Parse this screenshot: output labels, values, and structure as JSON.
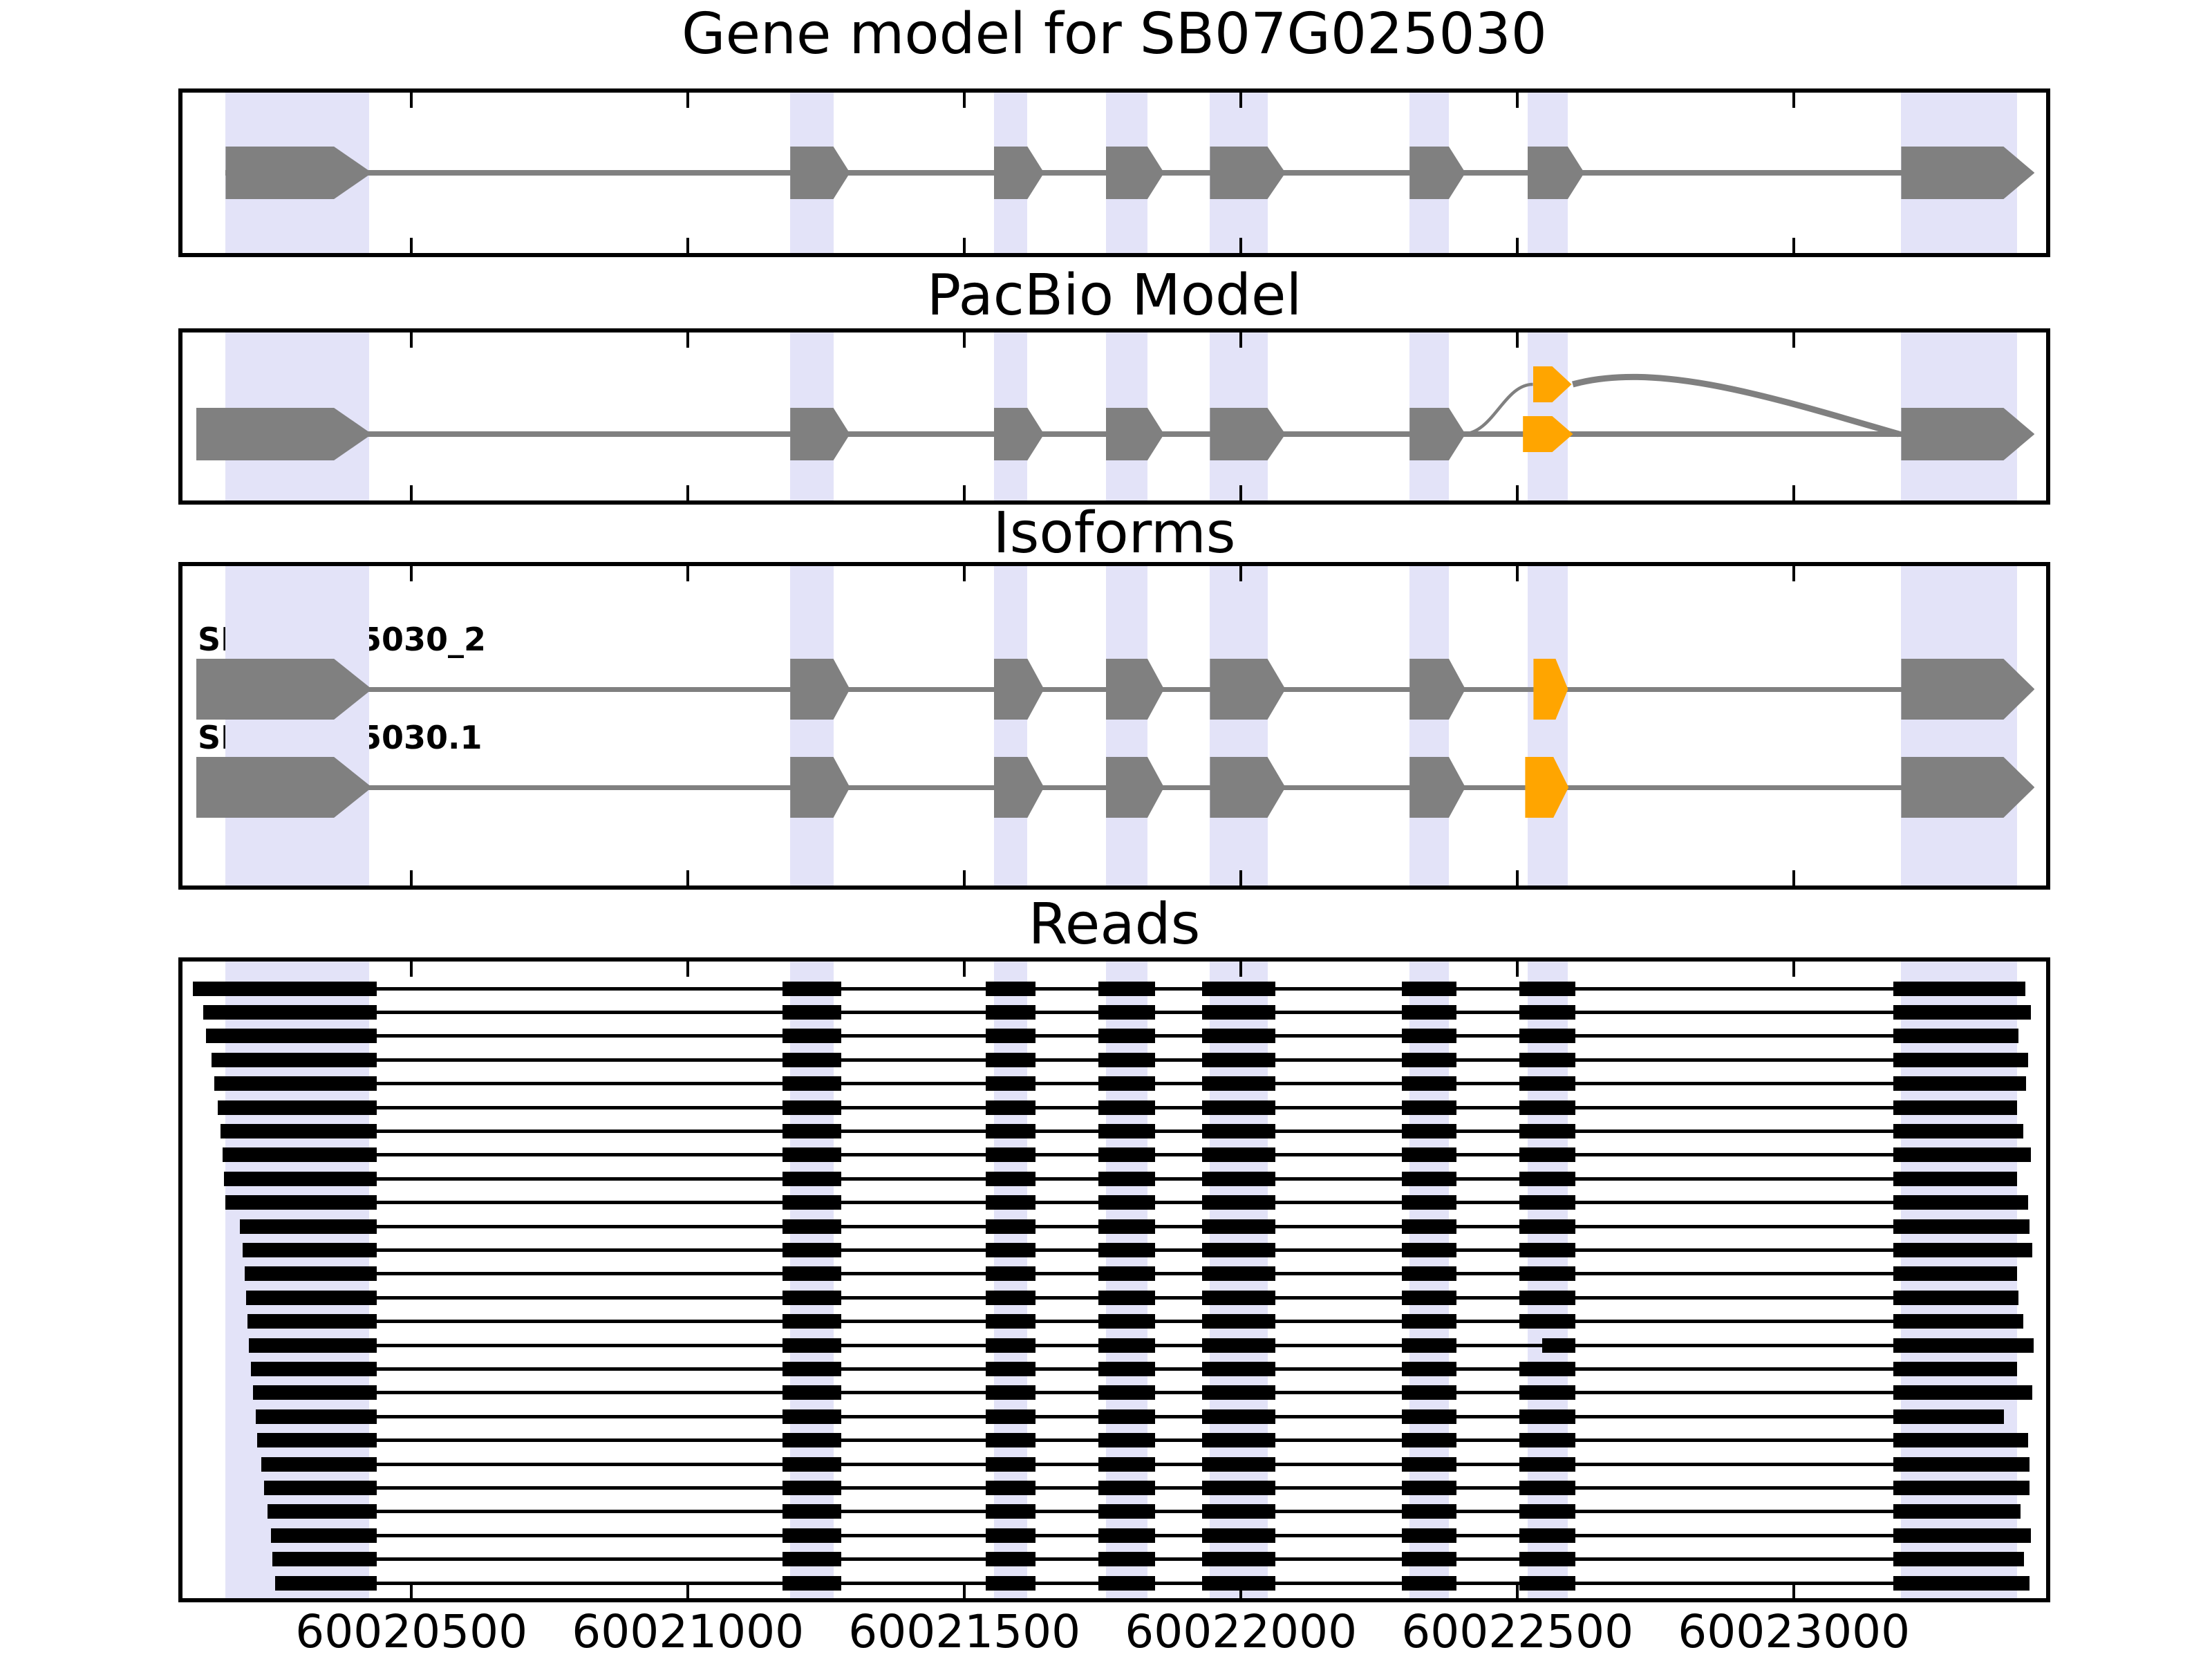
{
  "chart_data": {
    "type": "gene-structure-tracks",
    "title": "Gene model for SB07G025030",
    "x_axis": {
      "min": 60020086,
      "max": 60023456,
      "ticks": [
        60020500,
        60021000,
        60021500,
        60022000,
        60022500,
        60023000
      ],
      "tick_labels": [
        "60020500",
        "60021000",
        "60021500",
        "60022000",
        "60022500",
        "60023000"
      ]
    },
    "highlights": [
      [
        60020164,
        60020423
      ],
      [
        60021185,
        60021263
      ],
      [
        60021553,
        60021614
      ],
      [
        60021756,
        60021831
      ],
      [
        60021944,
        60022048
      ],
      [
        60022305,
        60022376
      ],
      [
        60022518,
        60022591
      ],
      [
        60023194,
        60023404
      ]
    ],
    "colors": {
      "exon_gray": "#808080",
      "alt_orange": "#FFA500",
      "line_gray": "#808080",
      "read_black": "#000000",
      "highlight_band": "#E3E3F8",
      "axis": "#000000",
      "background": "#FFFFFF"
    },
    "tracks": [
      {
        "title": "Gene model for SB07G025030",
        "type": "gene",
        "line": [
          60020164,
          60023404
        ],
        "exons": [
          {
            "s": 60020164,
            "e": 60020360,
            "tip": 55,
            "color": "gray"
          },
          {
            "s": 60021185,
            "e": 60021263,
            "tip": 24,
            "color": "gray"
          },
          {
            "s": 60021553,
            "e": 60021614,
            "tip": 24,
            "color": "gray"
          },
          {
            "s": 60021756,
            "e": 60021831,
            "tip": 24,
            "color": "gray"
          },
          {
            "s": 60021944,
            "e": 60022048,
            "tip": 26,
            "color": "gray"
          },
          {
            "s": 60022305,
            "e": 60022376,
            "tip": 24,
            "color": "gray"
          },
          {
            "s": 60022518,
            "e": 60022591,
            "tip": 24,
            "color": "gray"
          },
          {
            "s": 60023194,
            "e": 60023379,
            "tip": 45,
            "color": "gray"
          }
        ]
      },
      {
        "title": "PacBio Model",
        "type": "gene",
        "line": [
          60020111,
          60023404
        ],
        "exons": [
          {
            "s": 60020111,
            "e": 60020360,
            "tip": 55,
            "color": "gray"
          },
          {
            "s": 60021185,
            "e": 60021263,
            "tip": 24,
            "color": "gray"
          },
          {
            "s": 60021553,
            "e": 60021614,
            "tip": 24,
            "color": "gray"
          },
          {
            "s": 60021756,
            "e": 60021831,
            "tip": 24,
            "color": "gray"
          },
          {
            "s": 60021944,
            "e": 60022048,
            "tip": 26,
            "color": "gray"
          },
          {
            "s": 60022305,
            "e": 60022376,
            "tip": 24,
            "color": "gray"
          },
          {
            "s": 60022510,
            "e": 60022563,
            "tip": 30,
            "color": "orange",
            "small": true
          },
          {
            "s": 60022528,
            "e": 60022563,
            "tip": 28,
            "color": "orange",
            "small": true,
            "raised": true
          },
          {
            "s": 60023194,
            "e": 60023379,
            "tip": 45,
            "color": "gray"
          }
        ],
        "arcs": [
          {
            "from": 60022400,
            "to": 60022528,
            "kind": "up-thin"
          },
          {
            "from": 60022600,
            "to": 60023190,
            "kind": "down-thick"
          }
        ]
      },
      {
        "title": "Isoforms",
        "type": "isoforms",
        "isoforms": [
          {
            "label": "SB07G025030_2",
            "line": [
              60020111,
              60023404
            ],
            "exons": [
              {
                "s": 60020111,
                "e": 60020360,
                "tip": 55,
                "color": "gray"
              },
              {
                "s": 60021185,
                "e": 60021263,
                "tip": 24,
                "color": "gray"
              },
              {
                "s": 60021553,
                "e": 60021614,
                "tip": 24,
                "color": "gray"
              },
              {
                "s": 60021756,
                "e": 60021831,
                "tip": 24,
                "color": "gray"
              },
              {
                "s": 60021944,
                "e": 60022048,
                "tip": 26,
                "color": "gray"
              },
              {
                "s": 60022305,
                "e": 60022376,
                "tip": 24,
                "color": "gray"
              },
              {
                "s": 60022529,
                "e": 60022569,
                "tip": 18,
                "color": "orange"
              },
              {
                "s": 60023194,
                "e": 60023379,
                "tip": 45,
                "color": "gray"
              }
            ]
          },
          {
            "label": "SB07G025030.1",
            "line": [
              60020111,
              60023404
            ],
            "exons": [
              {
                "s": 60020111,
                "e": 60020360,
                "tip": 55,
                "color": "gray"
              },
              {
                "s": 60021185,
                "e": 60021263,
                "tip": 24,
                "color": "gray"
              },
              {
                "s": 60021553,
                "e": 60021614,
                "tip": 24,
                "color": "gray"
              },
              {
                "s": 60021756,
                "e": 60021831,
                "tip": 24,
                "color": "gray"
              },
              {
                "s": 60021944,
                "e": 60022048,
                "tip": 26,
                "color": "gray"
              },
              {
                "s": 60022305,
                "e": 60022376,
                "tip": 24,
                "color": "gray"
              },
              {
                "s": 60022514,
                "e": 60022565,
                "tip": 22,
                "color": "orange"
              },
              {
                "s": 60023194,
                "e": 60023379,
                "tip": 45,
                "color": "gray"
              }
            ]
          }
        ]
      },
      {
        "title": "Reads",
        "type": "reads",
        "first_exon_end": 60020423,
        "internal_exons": [
          [
            60021185,
            60021263
          ],
          [
            60021553,
            60021614
          ],
          [
            60021756,
            60021831
          ],
          [
            60021944,
            60022048
          ],
          [
            60022305,
            60022376
          ],
          [
            60022518,
            60022591
          ]
        ],
        "last_exon_start": 60023194,
        "block_pad_bp": 14,
        "reads": [
          {
            "s": 60020105,
            "e": 60023419
          },
          {
            "s": 60020123,
            "e": 60023429
          },
          {
            "s": 60020129,
            "e": 60023406
          },
          {
            "s": 60020139,
            "e": 60023424
          },
          {
            "s": 60020144,
            "e": 60023420
          },
          {
            "s": 60020150,
            "e": 60023404
          },
          {
            "s": 60020155,
            "e": 60023415
          },
          {
            "s": 60020159,
            "e": 60023429
          },
          {
            "s": 60020161,
            "e": 60023404
          },
          {
            "s": 60020164,
            "e": 60023424
          },
          {
            "s": 60020190,
            "e": 60023426
          },
          {
            "s": 60020195,
            "e": 60023431
          },
          {
            "s": 60020198,
            "e": 60023404
          },
          {
            "s": 60020201,
            "e": 60023406
          },
          {
            "s": 60020204,
            "e": 60023415
          },
          {
            "s": 60020206,
            "e": 60023433,
            "alt7_start": 60022545
          },
          {
            "s": 60020210,
            "e": 60023404
          },
          {
            "s": 60020214,
            "e": 60023431
          },
          {
            "s": 60020218,
            "e": 60023380
          },
          {
            "s": 60020221,
            "e": 60023423
          },
          {
            "s": 60020228,
            "e": 60023426
          },
          {
            "s": 60020234,
            "e": 60023426
          },
          {
            "s": 60020240,
            "e": 60023410
          },
          {
            "s": 60020246,
            "e": 60023428
          },
          {
            "s": 60020249,
            "e": 60023416
          },
          {
            "s": 60020253,
            "e": 60023426
          }
        ]
      }
    ]
  }
}
